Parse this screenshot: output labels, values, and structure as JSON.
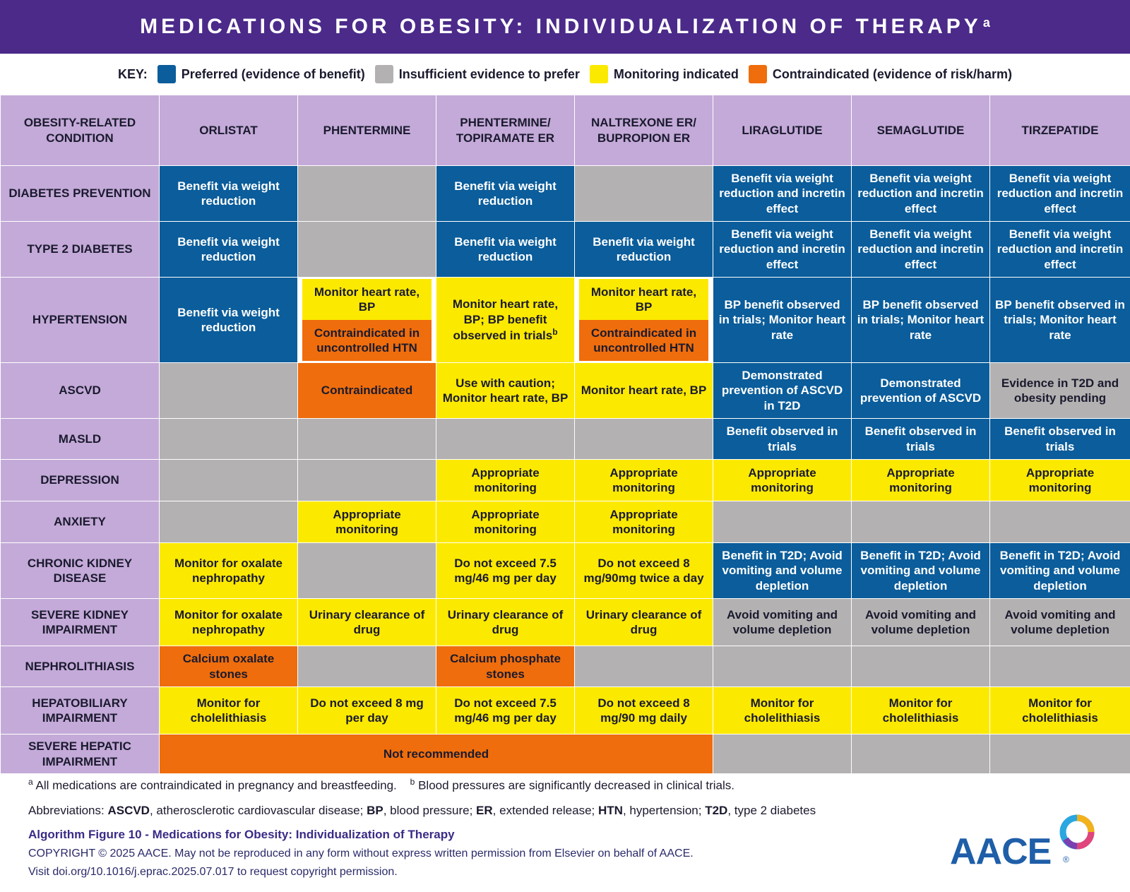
{
  "title": {
    "text": "MEDICATIONS FOR OBESITY: INDIVIDUALIZATION OF THERAPY",
    "sup": "a"
  },
  "key": {
    "label": "KEY:",
    "items": [
      {
        "text": "Preferred (evidence of benefit)",
        "color": "#0b5d9b"
      },
      {
        "text": "Insufficient evidence to prefer",
        "color": "#b3b1b1"
      },
      {
        "text": "Monitoring indicated",
        "color": "#fce900"
      },
      {
        "text": "Contraindicated (evidence of risk/harm)",
        "color": "#ef6d0c"
      }
    ]
  },
  "table": {
    "corner": "OBESITY-RELATED CONDITION",
    "columns": [
      "ORLISTAT",
      "PHENTERMINE",
      "PHENTERMINE/ TOPIRAMATE ER",
      "NALTREXONE ER/ BUPROPION ER",
      "LIRAGLUTIDE",
      "SEMAGLUTIDE",
      "TIRZEPATIDE"
    ],
    "rows": {
      "diabetes_prevention": {
        "label": "DIABETES PREVENTION",
        "c0": "Benefit via weight reduction",
        "c2": "Benefit via weight reduction",
        "c4": "Benefit via weight reduction and incretin effect",
        "c5": "Benefit via weight reduction and incretin effect",
        "c6": "Benefit via weight reduction and incretin effect"
      },
      "type2": {
        "label": "TYPE 2 DIABETES",
        "c0": "Benefit via weight reduction",
        "c2": "Benefit via weight reduction",
        "c3": "Benefit via weight reduction",
        "c4": "Benefit via weight reduction and incretin effect",
        "c5": "Benefit via weight reduction and incretin effect",
        "c6": "Benefit via weight reduction and incretin effect"
      },
      "hypertension": {
        "label": "HYPERTENSION",
        "c0": "Benefit via weight reduction",
        "c1_top": "Monitor heart rate, BP",
        "c1_bot": "Contraindicated in uncontrolled HTN",
        "c2": "Monitor heart rate, BP; BP benefit observed in trials",
        "c2_sup": "b",
        "c3_top": "Monitor heart rate, BP",
        "c3_bot": "Contraindicated in uncontrolled HTN",
        "c4": "BP benefit observed in trials; Monitor heart rate",
        "c5": "BP benefit observed in trials; Monitor heart rate",
        "c6": "BP benefit observed in trials; Monitor heart rate"
      },
      "ascvd": {
        "label": "ASCVD",
        "c1": "Contraindicated",
        "c2": "Use with caution; Monitor heart rate, BP",
        "c3": "Monitor heart rate, BP",
        "c4": "Demonstrated prevention of ASCVD in T2D",
        "c5": "Demonstrated prevention of ASCVD",
        "c6": "Evidence in T2D and obesity pending"
      },
      "masld": {
        "label": "MASLD",
        "c4": "Benefit observed in trials",
        "c5": "Benefit observed in trials",
        "c6": "Benefit observed in trials"
      },
      "depression": {
        "label": "DEPRESSION",
        "c2": "Appropriate monitoring",
        "c3": "Appropriate monitoring",
        "c4": "Appropriate monitoring",
        "c5": "Appropriate monitoring",
        "c6": "Appropriate monitoring"
      },
      "anxiety": {
        "label": "ANXIETY",
        "c1": "Appropriate monitoring",
        "c2": "Appropriate monitoring",
        "c3": "Appropriate monitoring"
      },
      "ckd": {
        "label": "CHRONIC KIDNEY DISEASE",
        "c0": "Monitor for oxalate nephropathy",
        "c2": "Do not exceed 7.5 mg/46 mg per day",
        "c3": "Do not exceed 8 mg/90mg twice a day",
        "c4": "Benefit in T2D; Avoid vomiting and volume depletion",
        "c5": "Benefit in T2D; Avoid vomiting and volume depletion",
        "c6": "Benefit in T2D; Avoid vomiting and volume depletion"
      },
      "severe_kidney": {
        "label": "SEVERE KIDNEY IMPAIRMENT",
        "c0": "Monitor for oxalate nephropathy",
        "c1": "Urinary clearance of drug",
        "c2": "Urinary clearance of drug",
        "c3": "Urinary clearance of drug",
        "c4": "Avoid vomiting and volume depletion",
        "c5": "Avoid vomiting and volume depletion",
        "c6": "Avoid vomiting and volume depletion"
      },
      "nephrolithiasis": {
        "label": "NEPHROLITHIASIS",
        "c0": "Calcium oxalate stones",
        "c2": "Calcium phosphate stones"
      },
      "hepatobiliary": {
        "label": "HEPATOBILIARY IMPAIRMENT",
        "c0": "Monitor for cholelithiasis",
        "c1": "Do not exceed 8 mg per day",
        "c2": "Do not exceed 7.5 mg/46 mg per day",
        "c3": "Do not exceed 8 mg/90 mg daily",
        "c4": "Monitor for cholelithiasis",
        "c5": "Monitor for cholelithiasis",
        "c6": "Monitor for cholelithiasis"
      },
      "severe_hepatic": {
        "label": "SEVERE HEPATIC IMPAIRMENT",
        "c0_3": "Not recommended"
      }
    }
  },
  "footnotes": {
    "a_mark": "a",
    "a_text": "All medications are contraindicated in pregnancy and breastfeeding.",
    "b_mark": "b",
    "b_text": "Blood pressures are significantly decreased in clinical trials."
  },
  "abbreviations": {
    "lead": "Abbreviations: ",
    "items": [
      {
        "term": "ASCVD",
        "def": ", atherosclerotic cardiovascular disease; "
      },
      {
        "term": "BP",
        "def": ", blood pressure; "
      },
      {
        "term": "ER",
        "def": ", extended release; "
      },
      {
        "term": "HTN",
        "def": ", hypertension; "
      },
      {
        "term": "T2D",
        "def": ", type 2 diabetes"
      }
    ]
  },
  "figure_title": "Algorithm Figure 10 - Medications for Obesity: Individualization of Therapy",
  "copyright": "COPYRIGHT © 2025 AACE. May not be reproduced in any form without express written permission from Elsevier on behalf of AACE.",
  "permission": "Visit doi.org/10.1016/j.eprac.2025.07.017 to request copyright permission.",
  "logo": {
    "text": "AACE",
    "reg": "®"
  }
}
